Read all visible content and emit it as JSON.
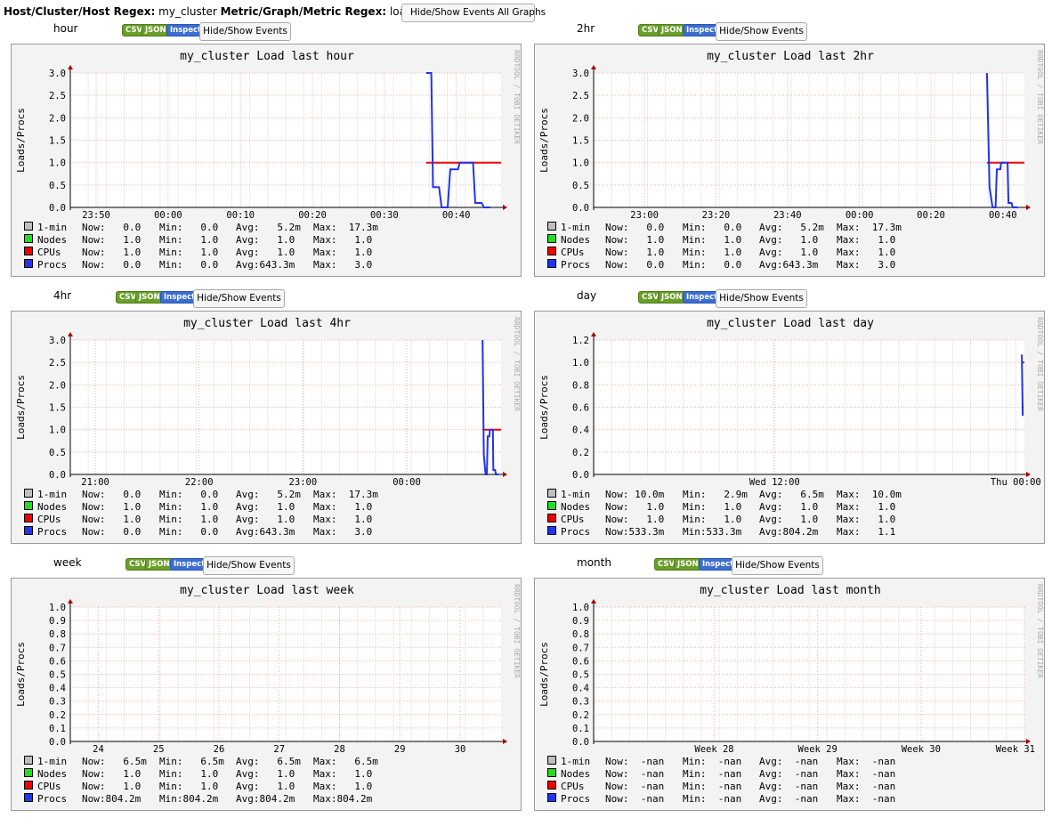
{
  "header": {
    "host_label": "Host/Cluster/Host Regex:",
    "host_value": "my_cluster",
    "metric_label": "Metric/Graph/Metric Regex:",
    "metric_value": "load_report",
    "toggle_all_label": "Hide/Show Events All Graphs"
  },
  "buttons": {
    "csv": "CSV",
    "json": "JSON",
    "inspect": "Inspect",
    "events": "Hide/Show Events"
  },
  "colors": {
    "one_min": "#bfbfbf",
    "nodes": "#22dd22",
    "cpus": "#ee0000",
    "procs": "#2233ee",
    "plot_bg": "#ffffff",
    "grid": "#f0b0b0",
    "frame": "#f3f3f3"
  },
  "watermark": "RRDTOOL / TOBI OETIKER",
  "ylabel": "Loads/Procs",
  "legend_names": [
    "1-min",
    "Nodes",
    "CPUs",
    "Procs"
  ],
  "graphs": [
    {
      "range": "hour",
      "title": "my_cluster Load last hour",
      "y_ticks": [
        "3.0",
        "2.5",
        "2.0",
        "1.5",
        "1.0",
        "0.5",
        "0.0"
      ],
      "y_max": 3.0,
      "x_ticks": [
        "23:50",
        "00:00",
        "00:10",
        "00:20",
        "00:30",
        "00:40"
      ],
      "legend": [
        [
          "Now:   0.0",
          "Min:   0.0",
          "Avg:   5.2m",
          "Max:  17.3m"
        ],
        [
          "Now:   1.0",
          "Min:   1.0",
          "Avg:   1.0",
          "Max:   1.0"
        ],
        [
          "Now:   1.0",
          "Min:   1.0",
          "Avg:   1.0",
          "Max:   1.0"
        ],
        [
          "Now:   0.0",
          "Min:   0.0",
          "Avg:643.3m",
          "Max:   3.0"
        ]
      ],
      "chart_data": {
        "type": "line",
        "x_range": [
          0,
          1
        ],
        "y_range": [
          0,
          3.0
        ],
        "series": [
          {
            "name": "CPUs",
            "points": [
              [
                0.826,
                1.0
              ],
              [
                1.0,
                1.0
              ]
            ]
          },
          {
            "name": "Procs",
            "points": [
              [
                0.826,
                3.0
              ],
              [
                0.838,
                3.0
              ],
              [
                0.842,
                0.45
              ],
              [
                0.856,
                0.45
              ],
              [
                0.862,
                0.0
              ],
              [
                0.876,
                0.0
              ],
              [
                0.882,
                0.85
              ],
              [
                0.9,
                0.85
              ],
              [
                0.904,
                1.0
              ],
              [
                0.935,
                1.0
              ],
              [
                0.94,
                0.1
              ],
              [
                0.955,
                0.1
              ],
              [
                0.96,
                0.0
              ],
              [
                0.975,
                0.0
              ]
            ]
          }
        ]
      }
    },
    {
      "range": "2hr",
      "title": "my_cluster Load last 2hr",
      "y_ticks": [
        "3.0",
        "2.5",
        "2.0",
        "1.5",
        "1.0",
        "0.5",
        "0.0"
      ],
      "y_max": 3.0,
      "x_ticks": [
        "23:00",
        "23:20",
        "23:40",
        "00:00",
        "00:20",
        "00:40"
      ],
      "legend": [
        [
          "Now:   0.0",
          "Min:   0.0",
          "Avg:   5.2m",
          "Max:  17.3m"
        ],
        [
          "Now:   1.0",
          "Min:   1.0",
          "Avg:   1.0",
          "Max:   1.0"
        ],
        [
          "Now:   1.0",
          "Min:   1.0",
          "Avg:   1.0",
          "Max:   1.0"
        ],
        [
          "Now:   0.0",
          "Min:   0.0",
          "Avg:643.3m",
          "Max:   3.0"
        ]
      ],
      "chart_data": {
        "type": "line",
        "x_range": [
          0,
          1
        ],
        "y_range": [
          0,
          3.0
        ],
        "series": [
          {
            "name": "CPUs",
            "points": [
              [
                0.913,
                1.0
              ],
              [
                1.0,
                1.0
              ]
            ]
          },
          {
            "name": "Procs",
            "points": [
              [
                0.913,
                3.0
              ],
              [
                0.919,
                0.45
              ],
              [
                0.926,
                0.0
              ],
              [
                0.933,
                0.0
              ],
              [
                0.936,
                0.85
              ],
              [
                0.944,
                0.85
              ],
              [
                0.946,
                1.0
              ],
              [
                0.961,
                1.0
              ],
              [
                0.963,
                0.1
              ],
              [
                0.97,
                0.1
              ],
              [
                0.973,
                0.0
              ],
              [
                0.985,
                0.0
              ]
            ]
          }
        ]
      }
    },
    {
      "range": "4hr",
      "title": "my_cluster Load last 4hr",
      "y_ticks": [
        "3.0",
        "2.5",
        "2.0",
        "1.5",
        "1.0",
        "0.5",
        "0.0"
      ],
      "y_max": 3.0,
      "x_ticks": [
        "21:00",
        "22:00",
        "23:00",
        "00:00"
      ],
      "legend": [
        [
          "Now:   0.0",
          "Min:   0.0",
          "Avg:   5.2m",
          "Max:  17.3m"
        ],
        [
          "Now:   1.0",
          "Min:   1.0",
          "Avg:   1.0",
          "Max:   1.0"
        ],
        [
          "Now:   1.0",
          "Min:   1.0",
          "Avg:   1.0",
          "Max:   1.0"
        ],
        [
          "Now:   0.0",
          "Min:   0.0",
          "Avg:643.3m",
          "Max:   3.0"
        ]
      ],
      "chart_data": {
        "type": "line",
        "x_range": [
          0,
          1
        ],
        "y_range": [
          0,
          3.0
        ],
        "series": [
          {
            "name": "CPUs",
            "points": [
              [
                0.957,
                1.0
              ],
              [
                1.0,
                1.0
              ]
            ]
          },
          {
            "name": "Procs",
            "points": [
              [
                0.957,
                3.0
              ],
              [
                0.96,
                0.45
              ],
              [
                0.964,
                0.0
              ],
              [
                0.967,
                0.0
              ],
              [
                0.969,
                0.85
              ],
              [
                0.973,
                0.85
              ],
              [
                0.974,
                1.0
              ],
              [
                0.981,
                1.0
              ],
              [
                0.982,
                0.1
              ],
              [
                0.986,
                0.1
              ],
              [
                0.988,
                0.0
              ],
              [
                0.994,
                0.0
              ]
            ]
          }
        ]
      }
    },
    {
      "range": "day",
      "title": "my_cluster Load last day",
      "y_ticks": [
        "1.2",
        "1.0",
        "0.8",
        "0.6",
        "0.4",
        "0.2",
        "0.0"
      ],
      "y_max": 1.2,
      "x_ticks": [
        "Wed 12:00",
        "Thu 00:00"
      ],
      "legend": [
        [
          "Now: 10.0m",
          "Min:   2.9m",
          "Avg:   6.5m",
          "Max:  10.0m"
        ],
        [
          "Now:   1.0",
          "Min:   1.0",
          "Avg:   1.0",
          "Max:   1.0"
        ],
        [
          "Now:   1.0",
          "Min:   1.0",
          "Avg:   1.0",
          "Max:   1.0"
        ],
        [
          "Now:533.3m",
          "Min:533.3m",
          "Avg:804.2m",
          "Max:   1.1"
        ]
      ],
      "chart_data": {
        "type": "line",
        "x_range": [
          0,
          1
        ],
        "y_range": [
          0,
          1.2
        ],
        "series": [
          {
            "name": "CPUs",
            "points": [
              [
                0.996,
                1.0
              ],
              [
                1.0,
                1.0
              ]
            ]
          },
          {
            "name": "Procs",
            "points": [
              [
                0.994,
                1.07
              ],
              [
                0.996,
                0.53
              ],
              [
                0.998,
                0.53
              ]
            ]
          }
        ]
      }
    },
    {
      "range": "week",
      "title": "my_cluster Load last week",
      "y_ticks": [
        "1.0",
        "0.9",
        "0.8",
        "0.7",
        "0.6",
        "0.5",
        "0.4",
        "0.3",
        "0.2",
        "0.1",
        "0.0"
      ],
      "y_max": 1.0,
      "x_ticks": [
        "24",
        "25",
        "26",
        "27",
        "28",
        "29",
        "30"
      ],
      "legend": [
        [
          "Now:   6.5m",
          "Min:   6.5m",
          "Avg:   6.5m",
          "Max:   6.5m"
        ],
        [
          "Now:   1.0",
          "Min:   1.0",
          "Avg:   1.0",
          "Max:   1.0"
        ],
        [
          "Now:   1.0",
          "Min:   1.0",
          "Avg:   1.0",
          "Max:   1.0"
        ],
        [
          "Now:804.2m",
          "Min:804.2m",
          "Avg:804.2m",
          "Max:804.2m"
        ]
      ],
      "chart_data": {
        "type": "line",
        "x_range": [
          0,
          1
        ],
        "y_range": [
          0,
          1.0
        ],
        "series": []
      }
    },
    {
      "range": "month",
      "title": "my_cluster Load last month",
      "y_ticks": [
        "1.0",
        "0.9",
        "0.8",
        "0.7",
        "0.6",
        "0.5",
        "0.4",
        "0.3",
        "0.2",
        "0.1",
        "0.0"
      ],
      "y_max": 1.0,
      "x_ticks": [
        "Week 28",
        "Week 29",
        "Week 30",
        "Week 31"
      ],
      "legend": [
        [
          "Now:  -nan",
          "Min:  -nan",
          "Avg:  -nan",
          "Max:  -nan"
        ],
        [
          "Now:  -nan",
          "Min:  -nan",
          "Avg:  -nan",
          "Max:  -nan"
        ],
        [
          "Now:  -nan",
          "Min:  -nan",
          "Avg:  -nan",
          "Max:  -nan"
        ],
        [
          "Now:  -nan",
          "Min:  -nan",
          "Avg:  -nan",
          "Max:  -nan"
        ]
      ],
      "chart_data": {
        "type": "line",
        "x_range": [
          0,
          1
        ],
        "y_range": [
          0,
          1.0
        ],
        "series": []
      }
    }
  ]
}
